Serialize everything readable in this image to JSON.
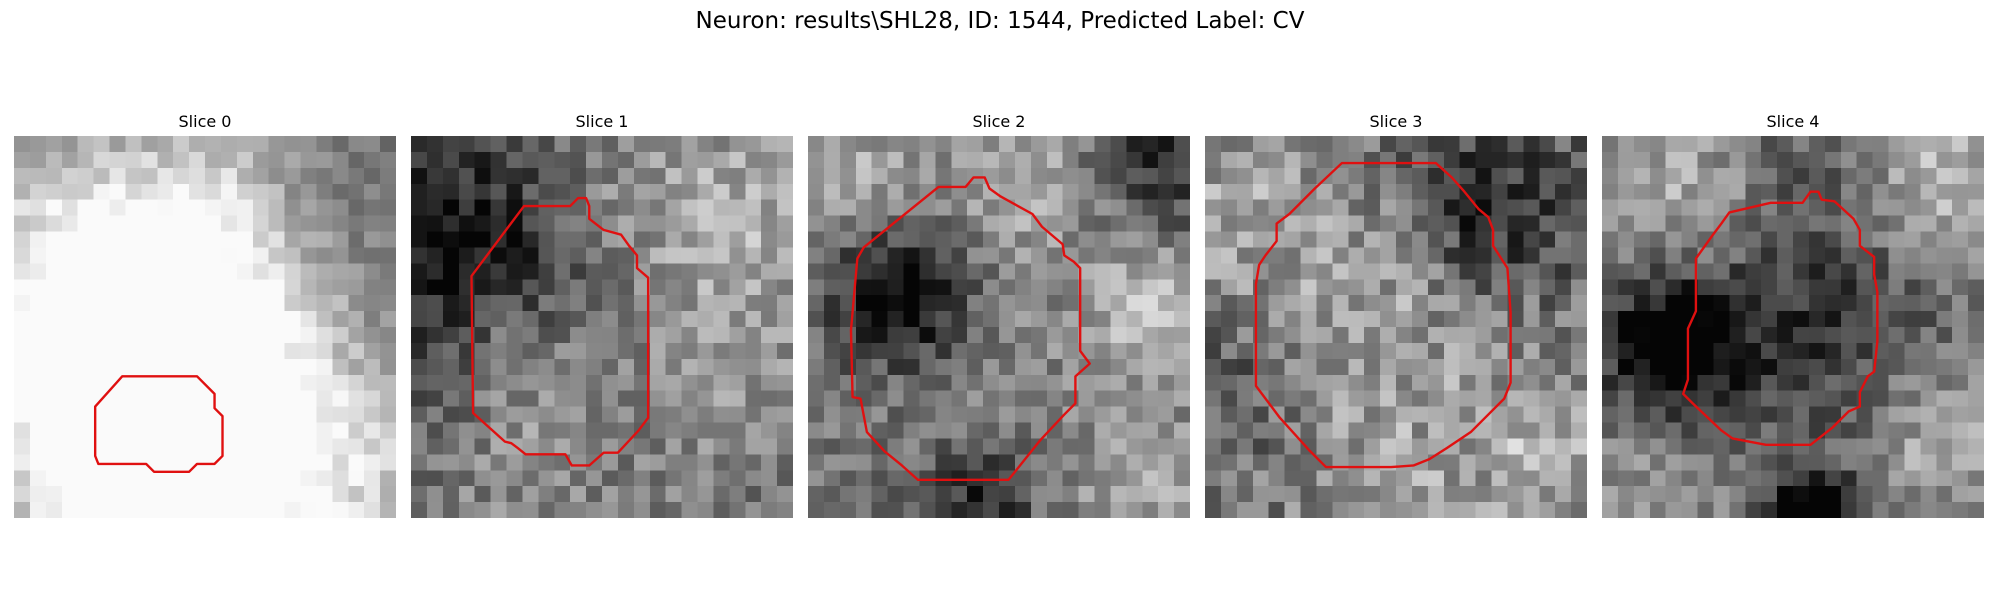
{
  "figure": {
    "title": "Neuron: results\\SHL28, ID: 1544, Predicted Label: CV"
  },
  "panels": [
    {
      "title": "Slice 0",
      "contour_color": "#e01010",
      "contour": [
        [
          4.85,
          7.55
        ],
        [
          5.75,
          7.55
        ],
        [
          6.3,
          8.1
        ],
        [
          6.3,
          8.55
        ],
        [
          6.55,
          8.8
        ],
        [
          6.55,
          10.05
        ],
        [
          6.3,
          10.3
        ],
        [
          5.75,
          10.3
        ],
        [
          5.5,
          10.55
        ],
        [
          4.4,
          10.55
        ],
        [
          4.15,
          10.3
        ],
        [
          2.65,
          10.3
        ],
        [
          2.55,
          10.05
        ],
        [
          2.55,
          8.5
        ],
        [
          3.4,
          7.55
        ]
      ],
      "field": [
        [
          -0.8,
          -0.8,
          0.25,
          0.35
        ],
        [
          0.25,
          0.65,
          0.3,
          0.3
        ],
        [
          0.55,
          0.3,
          0.35,
          0.25
        ],
        [
          0.7,
          0.8,
          0.3,
          0.25
        ],
        [
          0.25,
          0.25,
          0.22,
          0.3
        ],
        [
          0.6,
          0.6,
          0.45,
          0.3
        ],
        [
          0.35,
          0.95,
          0.25,
          0.22
        ],
        [
          0.2,
          0.72,
          0.12,
          0.25
        ],
        [
          0.82,
          0.15,
          0.18,
          -0.25
        ],
        [
          0.3,
          0.05,
          0.18,
          -0.2
        ],
        [
          0.92,
          0.5,
          0.2,
          -0.3
        ]
      ],
      "noise": 0.22,
      "seed": 11
    },
    {
      "title": "Slice 1",
      "contour_color": "#e01010",
      "contour": [
        [
          5,
          2.2
        ],
        [
          5.25,
          1.95
        ],
        [
          5.5,
          1.95
        ],
        [
          5.6,
          2.2
        ],
        [
          5.6,
          2.6
        ],
        [
          6.05,
          2.95
        ],
        [
          6.6,
          3.1
        ],
        [
          6.85,
          3.45
        ],
        [
          7.1,
          3.75
        ],
        [
          7.1,
          4.15
        ],
        [
          7.45,
          4.45
        ],
        [
          7.45,
          8.85
        ],
        [
          7.15,
          9.25
        ],
        [
          6.5,
          9.95
        ],
        [
          6.05,
          9.95
        ],
        [
          5.6,
          10.35
        ],
        [
          5.05,
          10.35
        ],
        [
          4.85,
          10
        ],
        [
          3.6,
          10
        ],
        [
          3.35,
          9.8
        ],
        [
          3.15,
          9.65
        ],
        [
          2.95,
          9.6
        ],
        [
          1.95,
          8.7
        ],
        [
          1.9,
          4.4
        ],
        [
          3.55,
          2.2
        ]
      ],
      "field": [
        [
          0.18,
          0.28,
          0.25,
          -0.65
        ],
        [
          0.25,
          0.55,
          0.13,
          0.2
        ],
        [
          0.5,
          0.5,
          0.28,
          0.12
        ],
        [
          0.85,
          0.6,
          0.14,
          0.1
        ],
        [
          0.3,
          0.85,
          0.14,
          0.1
        ],
        [
          0.2,
          0.2,
          0.2,
          0.22
        ],
        [
          0.9,
          0.2,
          0.2,
          0.2
        ],
        [
          0.5,
          0.15,
          0.18,
          0.15
        ]
      ],
      "noise": 0.32,
      "seed": 23
    },
    {
      "title": "Slice 2",
      "contour_color": "#e01010",
      "contour": [
        [
          4.1,
          1.6
        ],
        [
          4.95,
          1.6
        ],
        [
          5.2,
          1.3
        ],
        [
          5.55,
          1.3
        ],
        [
          5.7,
          1.65
        ],
        [
          6.05,
          1.9
        ],
        [
          7.05,
          2.45
        ],
        [
          7.35,
          2.85
        ],
        [
          8,
          3.4
        ],
        [
          8.05,
          3.75
        ],
        [
          8.35,
          3.95
        ],
        [
          8.55,
          4.15
        ],
        [
          8.55,
          6.75
        ],
        [
          8.85,
          7.15
        ],
        [
          8.4,
          7.55
        ],
        [
          8.4,
          8.4
        ],
        [
          8.05,
          8.75
        ],
        [
          7.3,
          9.55
        ],
        [
          6.3,
          10.8
        ],
        [
          5.45,
          10.8
        ],
        [
          3.45,
          10.8
        ],
        [
          2.95,
          10.35
        ],
        [
          2.4,
          9.9
        ],
        [
          1.85,
          9.3
        ],
        [
          1.65,
          8.25
        ],
        [
          1.4,
          8.2
        ],
        [
          1.35,
          6.1
        ],
        [
          1.55,
          3.85
        ],
        [
          1.75,
          3.5
        ]
      ],
      "field": [
        [
          0.25,
          0.42,
          0.13,
          -0.5
        ],
        [
          0.9,
          0.45,
          0.1,
          0.35
        ],
        [
          0.5,
          0.5,
          0.25,
          0.08
        ],
        [
          0.93,
          0.05,
          0.12,
          -0.3
        ],
        [
          0.1,
          0.08,
          0.14,
          0.2
        ],
        [
          0.55,
          0.1,
          0.15,
          0.2
        ],
        [
          0.9,
          0.9,
          0.15,
          0.2
        ],
        [
          0.45,
          0.95,
          0.1,
          -0.3
        ]
      ],
      "noise": 0.3,
      "seed": 37
    },
    {
      "title": "Slice 3",
      "contour_color": "#e01010",
      "contour": [
        [
          6.3,
          0.85
        ],
        [
          7.25,
          0.85
        ],
        [
          7.75,
          1.3
        ],
        [
          8.15,
          1.75
        ],
        [
          8.6,
          2.3
        ],
        [
          8.9,
          2.55
        ],
        [
          9.05,
          2.95
        ],
        [
          9.05,
          3.45
        ],
        [
          9.5,
          4.15
        ],
        [
          9.6,
          5.55
        ],
        [
          9.6,
          7.75
        ],
        [
          9.4,
          8.25
        ],
        [
          8.95,
          8.7
        ],
        [
          8.35,
          9.3
        ],
        [
          7.6,
          9.8
        ],
        [
          7.05,
          10.15
        ],
        [
          6.55,
          10.35
        ],
        [
          5.85,
          10.4
        ],
        [
          4.6,
          10.4
        ],
        [
          3.8,
          10.4
        ],
        [
          3.3,
          9.9
        ],
        [
          2.35,
          8.85
        ],
        [
          1.6,
          7.85
        ],
        [
          1.6,
          4.65
        ],
        [
          1.7,
          4.05
        ],
        [
          1.9,
          3.75
        ],
        [
          2.25,
          3.3
        ],
        [
          2.25,
          2.75
        ],
        [
          2.65,
          2.45
        ],
        [
          3.45,
          1.65
        ],
        [
          4.3,
          0.85
        ]
      ],
      "field": [
        [
          0.75,
          0.2,
          0.16,
          -0.35
        ],
        [
          0.08,
          0.65,
          0.12,
          -0.2
        ],
        [
          0.45,
          0.5,
          0.28,
          0.2
        ],
        [
          0.88,
          0.85,
          0.12,
          0.25
        ],
        [
          0.1,
          0.15,
          0.15,
          0.15
        ],
        [
          0.5,
          0.95,
          0.12,
          0.15
        ]
      ],
      "noise": 0.38,
      "seed": 53
    },
    {
      "title": "Slice 4",
      "contour_color": "#e01010",
      "contour": [
        [
          5.3,
          2.1
        ],
        [
          6.3,
          2.1
        ],
        [
          6.55,
          1.75
        ],
        [
          6.8,
          1.75
        ],
        [
          6.9,
          2
        ],
        [
          7.3,
          2.05
        ],
        [
          7.9,
          2.6
        ],
        [
          8.1,
          2.95
        ],
        [
          8.1,
          3.45
        ],
        [
          8.55,
          3.8
        ],
        [
          8.55,
          4.35
        ],
        [
          8.65,
          4.9
        ],
        [
          8.65,
          6.45
        ],
        [
          8.55,
          7.4
        ],
        [
          8.35,
          7.55
        ],
        [
          8.1,
          8.05
        ],
        [
          8.1,
          8.5
        ],
        [
          7.75,
          8.65
        ],
        [
          7.25,
          9.15
        ],
        [
          6.55,
          9.7
        ],
        [
          5.15,
          9.7
        ],
        [
          4.1,
          9.5
        ],
        [
          3.75,
          9.25
        ],
        [
          2.85,
          8.4
        ],
        [
          2.55,
          8.1
        ],
        [
          2.7,
          7.65
        ],
        [
          2.7,
          6.05
        ],
        [
          2.95,
          5.5
        ],
        [
          2.95,
          3.85
        ],
        [
          3.45,
          3.15
        ],
        [
          3.75,
          2.75
        ],
        [
          4,
          2.4
        ]
      ],
      "field": [
        [
          0.18,
          0.55,
          0.13,
          -0.55
        ],
        [
          0.55,
          0.5,
          0.2,
          -0.25
        ],
        [
          0.55,
          0.98,
          0.08,
          -0.6
        ],
        [
          0.2,
          0.15,
          0.15,
          0.22
        ],
        [
          0.88,
          0.12,
          0.14,
          0.28
        ],
        [
          0.88,
          0.8,
          0.14,
          0.22
        ],
        [
          0.15,
          0.9,
          0.14,
          0.15
        ],
        [
          0.55,
          0.1,
          0.12,
          -0.1
        ]
      ],
      "noise": 0.3,
      "seed": 71
    }
  ]
}
